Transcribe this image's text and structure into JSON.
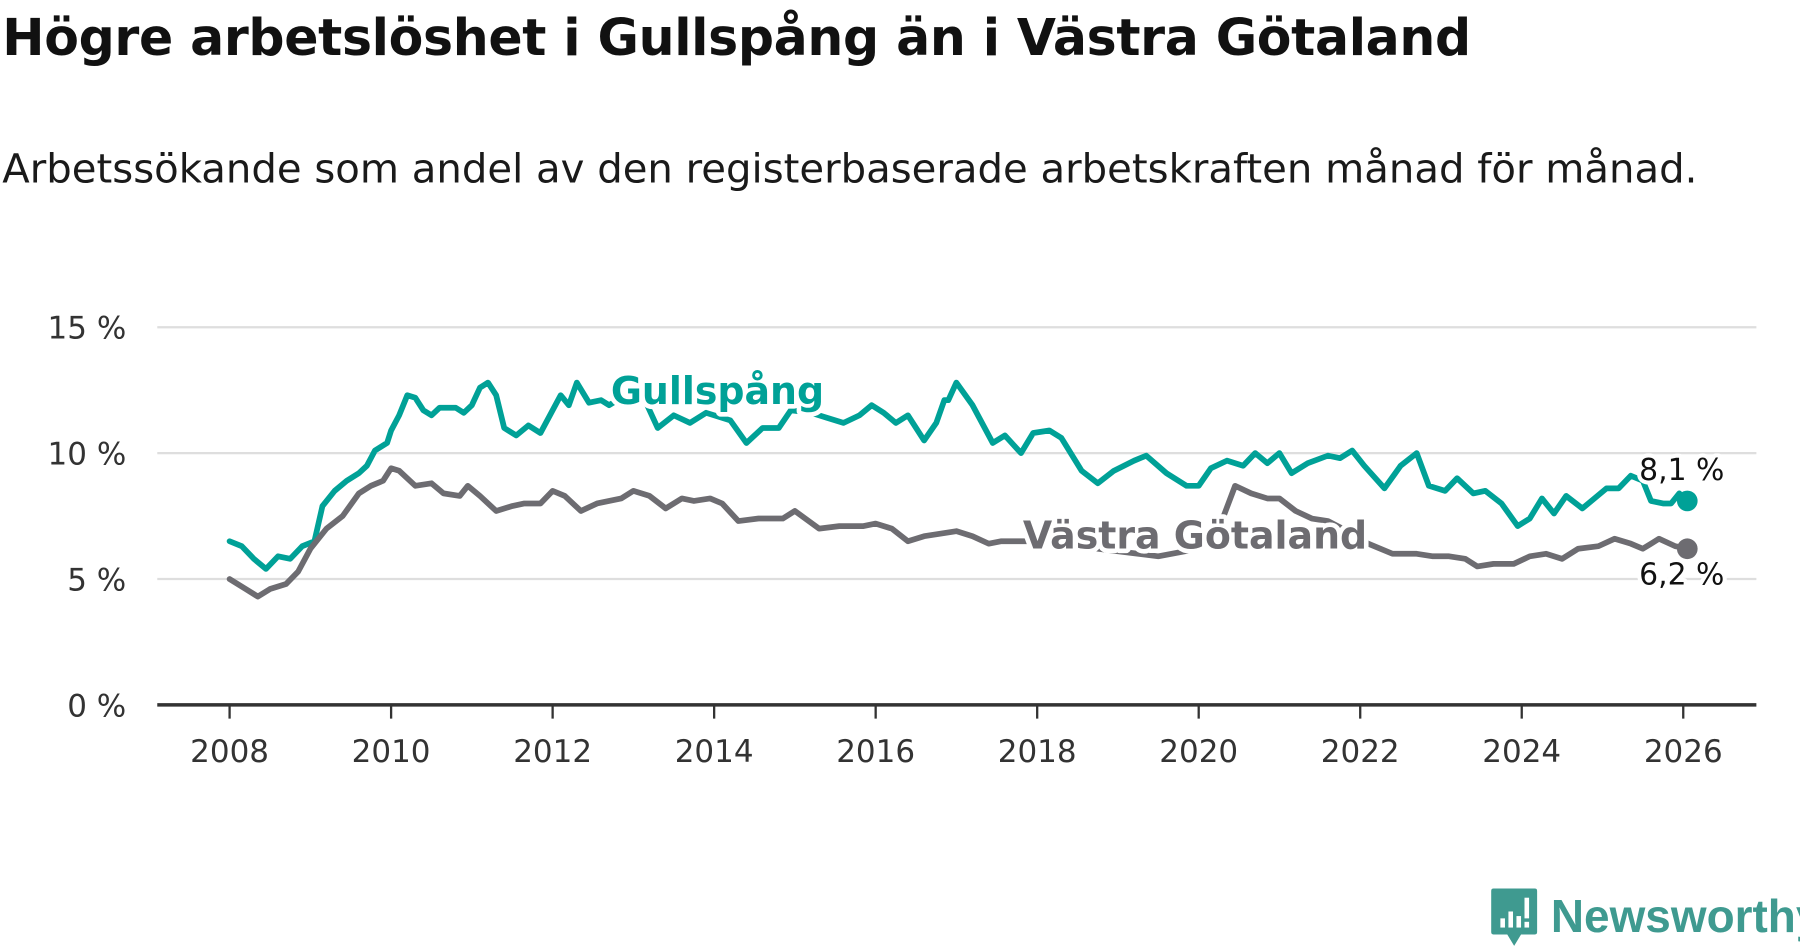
{
  "title": "Högre arbetslöshet i Gullspång än i Västra Götaland",
  "subtitle": "Arbetssökande som andel av den registerbaserade arbetskraften månad för månad.",
  "brand": "Newsworthy",
  "chart_data": {
    "type": "line",
    "title": "Högre arbetslöshet i Gullspång än i Västra Götaland",
    "subtitle": "Arbetssökande som andel av den registerbaserade arbetskraften månad för månad.",
    "xlabel": "",
    "ylabel": "",
    "xlim": [
      2007.1,
      2027.0
    ],
    "ylim": [
      0,
      15
    ],
    "grid": true,
    "x_ticks": [
      2008,
      2010,
      2012,
      2014,
      2016,
      2018,
      2020,
      2022,
      2024,
      2026
    ],
    "x_tick_labels": [
      "2008",
      "2010",
      "2012",
      "2014",
      "2016",
      "2018",
      "2020",
      "2022",
      "2024",
      "2026"
    ],
    "y_ticks": [
      0,
      5,
      10,
      15
    ],
    "y_tick_labels": [
      "0 %",
      "5 %",
      "10 %",
      "15 %"
    ],
    "series": [
      {
        "name": "Gullspång",
        "label": "Gullspång",
        "color": "#00a197",
        "end_label": "8,1 %",
        "x": [
          2008.0,
          2008.15,
          2008.3,
          2008.45,
          2008.6,
          2008.75,
          2008.9,
          2009.05,
          2009.15,
          2009.3,
          2009.45,
          2009.6,
          2009.7,
          2009.8,
          2009.95,
          2010.0,
          2010.1,
          2010.2,
          2010.3,
          2010.4,
          2010.5,
          2010.6,
          2010.8,
          2010.9,
          2011.0,
          2011.1,
          2011.2,
          2011.3,
          2011.4,
          2011.55,
          2011.7,
          2011.85,
          2012.0,
          2012.1,
          2012.2,
          2012.3,
          2012.45,
          2012.6,
          2012.7,
          2012.85,
          2013.0,
          2013.1,
          2013.3,
          2013.5,
          2013.7,
          2013.9,
          2014.2,
          2014.4,
          2014.6,
          2014.8,
          2014.95,
          2015.2,
          2015.4,
          2015.6,
          2015.8,
          2015.95,
          2016.1,
          2016.25,
          2016.4,
          2016.6,
          2016.75,
          2016.85,
          2016.9,
          2017.0,
          2017.2,
          2017.45,
          2017.6,
          2017.8,
          2017.95,
          2018.15,
          2018.3,
          2018.55,
          2018.75,
          2018.95,
          2019.2,
          2019.35,
          2019.6,
          2019.85,
          2020.0,
          2020.15,
          2020.35,
          2020.55,
          2020.7,
          2020.85,
          2021.0,
          2021.15,
          2021.35,
          2021.6,
          2021.75,
          2021.9,
          2022.05,
          2022.3,
          2022.5,
          2022.7,
          2022.85,
          2023.05,
          2023.2,
          2023.4,
          2023.55,
          2023.75,
          2023.95,
          2024.1,
          2024.25,
          2024.4,
          2024.55,
          2024.75,
          2024.9,
          2025.05,
          2025.2,
          2025.35,
          2025.5,
          2025.6,
          2025.75,
          2025.85,
          2025.95,
          2026.05
        ],
        "y": [
          6.5,
          6.3,
          5.8,
          5.4,
          5.9,
          5.8,
          6.3,
          6.5,
          7.9,
          8.5,
          8.9,
          9.2,
          9.5,
          10.1,
          10.4,
          10.9,
          11.5,
          12.3,
          12.2,
          11.7,
          11.5,
          11.8,
          11.8,
          11.6,
          11.9,
          12.6,
          12.8,
          12.3,
          11.0,
          10.7,
          11.1,
          10.8,
          11.7,
          12.3,
          11.9,
          12.8,
          12.0,
          12.1,
          11.9,
          12.2,
          12.5,
          12.4,
          11.0,
          11.5,
          11.2,
          11.6,
          11.3,
          10.4,
          11.0,
          11.0,
          11.7,
          11.6,
          11.4,
          11.2,
          11.5,
          11.9,
          11.6,
          11.2,
          11.5,
          10.5,
          11.2,
          12.1,
          12.1,
          12.8,
          11.9,
          10.4,
          10.7,
          10.0,
          10.8,
          10.9,
          10.6,
          9.3,
          8.8,
          9.3,
          9.7,
          9.9,
          9.2,
          8.7,
          8.7,
          9.4,
          9.7,
          9.5,
          10.0,
          9.6,
          10.0,
          9.2,
          9.6,
          9.9,
          9.8,
          10.1,
          9.5,
          8.6,
          9.5,
          10.0,
          8.7,
          8.5,
          9.0,
          8.4,
          8.5,
          8.0,
          7.1,
          7.4,
          8.2,
          7.6,
          8.3,
          7.8,
          8.2,
          8.6,
          8.6,
          9.1,
          8.9,
          8.1,
          8.0,
          8.0,
          8.4,
          8.1
        ]
      },
      {
        "name": "Västra Götaland",
        "label": "Västra Götaland",
        "color": "#6d6c71",
        "end_label": "6,2 %",
        "x": [
          2008.0,
          2008.2,
          2008.35,
          2008.5,
          2008.7,
          2008.85,
          2009.0,
          2009.2,
          2009.4,
          2009.6,
          2009.75,
          2009.9,
          2010.0,
          2010.1,
          2010.3,
          2010.5,
          2010.65,
          2010.85,
          2010.95,
          2011.1,
          2011.3,
          2011.5,
          2011.65,
          2011.85,
          2012.0,
          2012.15,
          2012.35,
          2012.55,
          2012.7,
          2012.85,
          2013.0,
          2013.2,
          2013.4,
          2013.6,
          2013.75,
          2013.95,
          2014.1,
          2014.3,
          2014.55,
          2014.85,
          2015.0,
          2015.3,
          2015.55,
          2015.85,
          2016.0,
          2016.2,
          2016.4,
          2016.6,
          2016.8,
          2017.0,
          2017.2,
          2017.4,
          2017.55,
          2017.75,
          2018.0,
          2018.5,
          2019.0,
          2019.5,
          2020.0,
          2020.25,
          2020.45,
          2020.65,
          2020.85,
          2021.0,
          2021.2,
          2021.4,
          2021.6,
          2021.9,
          2022.1,
          2022.4,
          2022.7,
          2022.9,
          2023.1,
          2023.3,
          2023.45,
          2023.65,
          2023.9,
          2024.1,
          2024.3,
          2024.5,
          2024.7,
          2024.95,
          2025.15,
          2025.35,
          2025.5,
          2025.7,
          2025.9,
          2026.05
        ],
        "y": [
          5.0,
          4.6,
          4.3,
          4.6,
          4.8,
          5.3,
          6.2,
          7.0,
          7.5,
          8.4,
          8.7,
          8.9,
          9.4,
          9.3,
          8.7,
          8.8,
          8.4,
          8.3,
          8.7,
          8.3,
          7.7,
          7.9,
          8.0,
          8.0,
          8.5,
          8.3,
          7.7,
          8.0,
          8.1,
          8.2,
          8.5,
          8.3,
          7.8,
          8.2,
          8.1,
          8.2,
          8.0,
          7.3,
          7.4,
          7.4,
          7.7,
          7.0,
          7.1,
          7.1,
          7.2,
          7.0,
          6.5,
          6.7,
          6.8,
          6.9,
          6.7,
          6.4,
          6.5,
          6.5,
          6.5,
          6.3,
          6.1,
          5.9,
          6.2,
          7.0,
          8.7,
          8.4,
          8.2,
          8.2,
          7.7,
          7.4,
          7.3,
          6.8,
          6.4,
          6.0,
          6.0,
          5.9,
          5.9,
          5.8,
          5.5,
          5.6,
          5.6,
          5.9,
          6.0,
          5.8,
          6.2,
          6.3,
          6.6,
          6.4,
          6.2,
          6.6,
          6.3,
          6.2
        ]
      }
    ]
  }
}
